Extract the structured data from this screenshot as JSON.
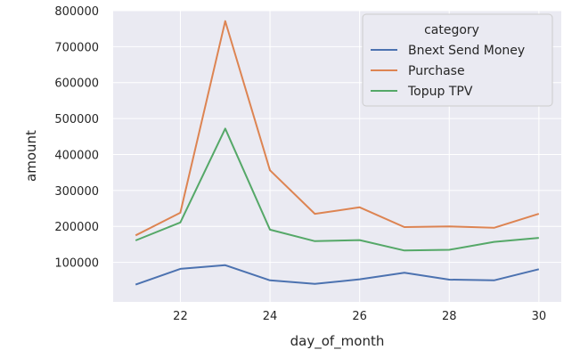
{
  "chart_data": {
    "type": "line",
    "xlabel": "day_of_month",
    "ylabel": "amount",
    "xlim": [
      20.5,
      30.5
    ],
    "ylim": [
      -10000,
      800000
    ],
    "x_ticks": [
      22,
      24,
      26,
      28,
      30
    ],
    "y_ticks": [
      100000,
      200000,
      300000,
      400000,
      500000,
      600000,
      700000,
      800000
    ],
    "x_tick_labels": [
      "22",
      "24",
      "26",
      "28",
      "30"
    ],
    "y_tick_labels": [
      "100000",
      "200000",
      "300000",
      "400000",
      "500000",
      "600000",
      "700000",
      "800000"
    ],
    "grid": true,
    "legend": {
      "title": "category",
      "position": "top-right"
    },
    "x": [
      21,
      22,
      23,
      24,
      25,
      26,
      27,
      28,
      29,
      30
    ],
    "series": [
      {
        "name": "Bnext Send Money",
        "color": "#4C72B0",
        "values": [
          38000,
          82000,
          92000,
          50000,
          40000,
          53000,
          71000,
          52000,
          50000,
          81000
        ]
      },
      {
        "name": "Purchase",
        "color": "#DD8452",
        "values": [
          175000,
          238000,
          771000,
          356000,
          235000,
          253000,
          198000,
          200000,
          196000,
          235000
        ]
      },
      {
        "name": "Topup TPV",
        "color": "#55A868",
        "values": [
          161000,
          211000,
          472000,
          191000,
          159000,
          162000,
          133000,
          135000,
          157000,
          168000
        ]
      }
    ]
  }
}
